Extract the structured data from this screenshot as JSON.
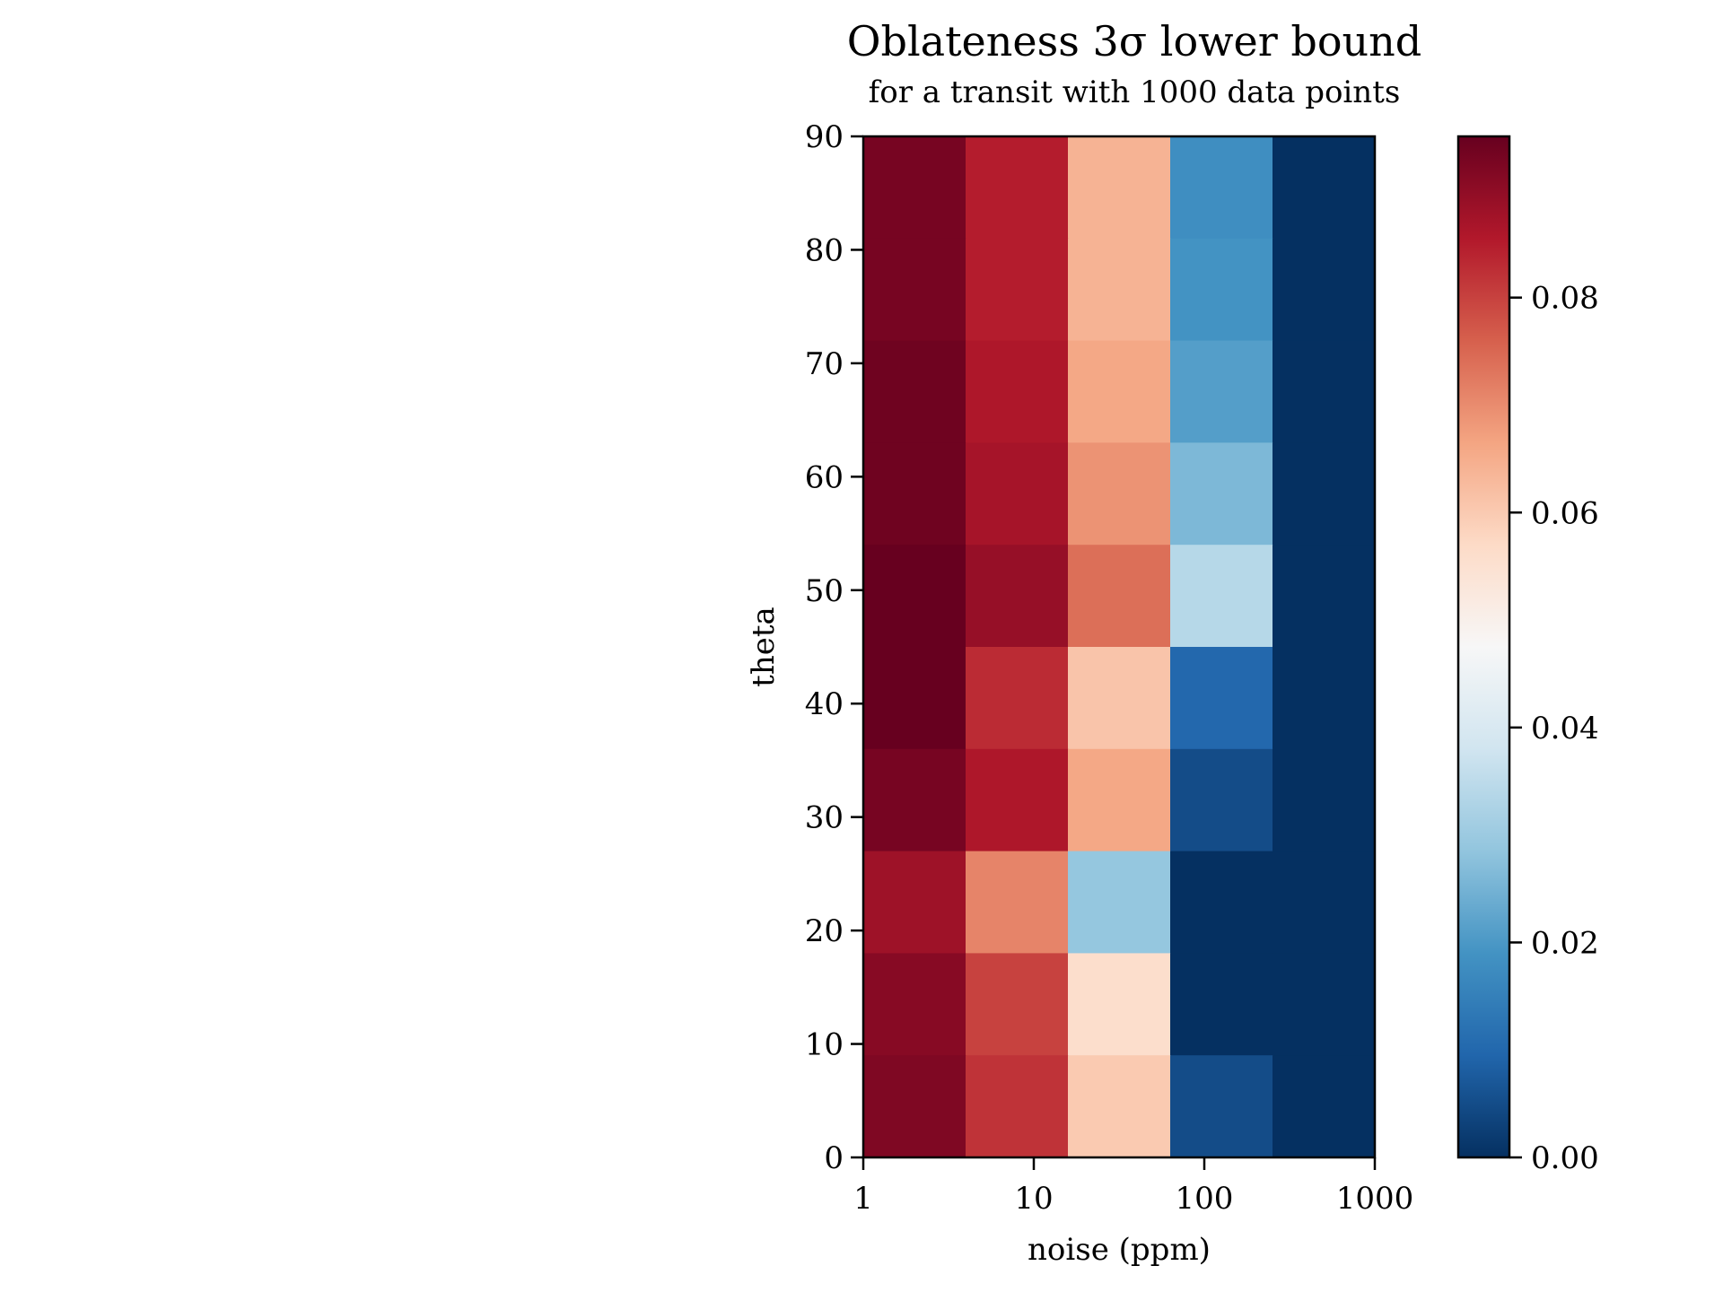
{
  "chart_data": {
    "type": "heatmap",
    "title": "Oblateness 3σ lower bound",
    "subtitle": "for a transit with 1000 data points",
    "xlabel": "noise (ppm)",
    "ylabel": "theta",
    "x_scale": "log",
    "xlim": [
      1,
      1000
    ],
    "ylim": [
      0,
      90
    ],
    "x_ticks": [
      1,
      10,
      100,
      1000
    ],
    "x_tick_labels": [
      "1",
      "10",
      "100",
      "1000"
    ],
    "y_ticks": [
      0,
      10,
      20,
      30,
      40,
      50,
      60,
      70,
      80,
      90
    ],
    "y_tick_labels": [
      "0",
      "10",
      "20",
      "30",
      "40",
      "50",
      "60",
      "70",
      "80",
      "90"
    ],
    "colormap": "RdBu_r",
    "colorbar": {
      "range": [
        0,
        0.095
      ],
      "ticks": [
        0,
        0.02,
        0.04,
        0.06,
        0.08
      ],
      "tick_labels": [
        "0.00",
        "0.02",
        "0.04",
        "0.06",
        "0.08"
      ],
      "colors": [
        "#053061",
        "#2166ac",
        "#4393c3",
        "#92c5de",
        "#d1e5f0",
        "#f7f7f7",
        "#fddbc7",
        "#f4a582",
        "#d6604d",
        "#b2182b",
        "#67001f"
      ]
    },
    "x_columns": 5,
    "rows_from_top": 10,
    "values": [
      [
        0.093,
        0.085,
        0.064,
        0.018,
        0.0
      ],
      [
        0.093,
        0.085,
        0.064,
        0.019,
        0.0
      ],
      [
        0.094,
        0.086,
        0.066,
        0.021,
        0.0
      ],
      [
        0.094,
        0.087,
        0.069,
        0.026,
        0.0
      ],
      [
        0.095,
        0.089,
        0.074,
        0.034,
        0.0
      ],
      [
        0.095,
        0.083,
        0.061,
        0.01,
        0.0
      ],
      [
        0.093,
        0.086,
        0.066,
        0.005,
        0.0
      ],
      [
        0.088,
        0.071,
        0.029,
        0.0,
        0.0
      ],
      [
        0.091,
        0.08,
        0.056,
        0.0,
        0.0
      ],
      [
        0.092,
        0.082,
        0.06,
        0.005,
        0.0
      ]
    ]
  }
}
